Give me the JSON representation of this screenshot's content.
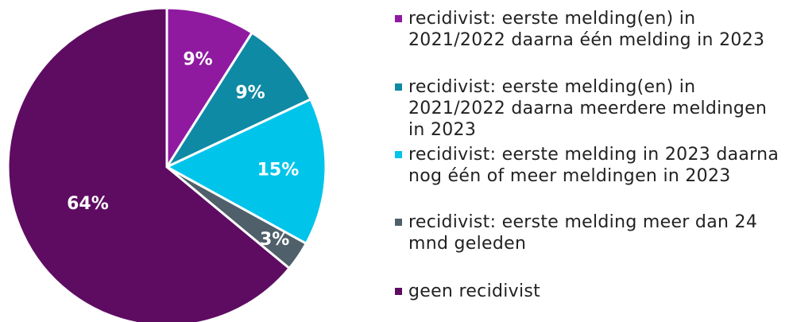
{
  "chart_data": {
    "type": "pie",
    "categories": [
      "recidivist: eerste melding(en) in 2021/2022 daarna één melding in 2023",
      "recidivist: eerste melding(en) in 2021/2022 daarna meerdere meldingen in 2023",
      "recidivist: eerste melding in 2023 daarna nog één of meer meldingen in 2023",
      "recidivist: eerste melding meer dan 24 mnd geleden",
      "geen recidivist"
    ],
    "values": [
      9,
      9,
      15,
      3,
      64
    ],
    "value_labels": [
      "9%",
      "9%",
      "15%",
      "3%",
      "64%"
    ],
    "colors": [
      "#8f1aa0",
      "#0e8aa4",
      "#00c4ea",
      "#4f606a",
      "#5e0c62"
    ],
    "legend": "right"
  }
}
